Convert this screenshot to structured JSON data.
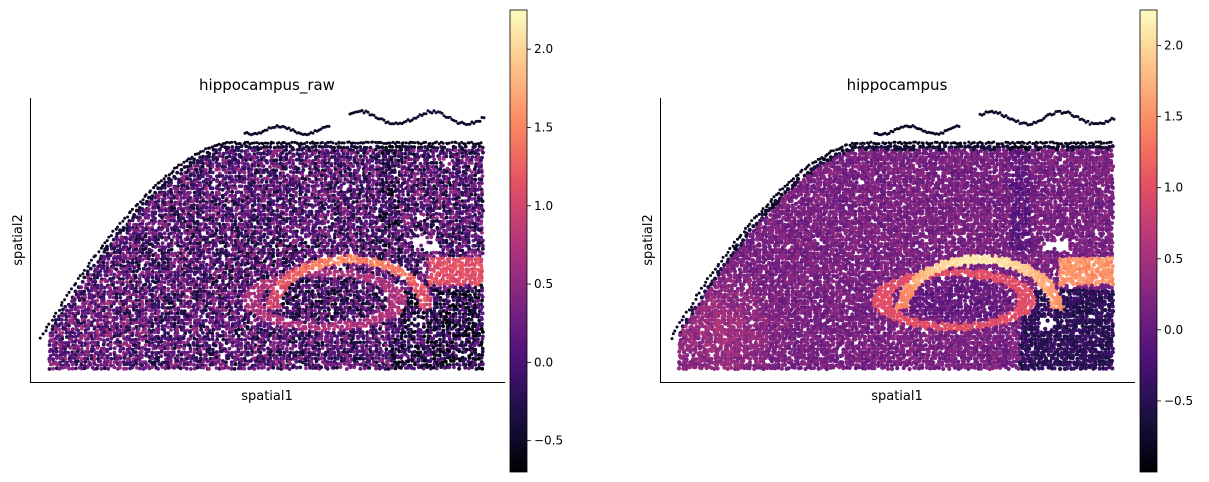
{
  "chart_data": [
    {
      "type": "scatter",
      "title": "hippocampus_raw",
      "xlabel": "spatial1",
      "ylabel": "spatial2",
      "colormap": "magma",
      "color_range": [
        -0.7,
        2.25
      ],
      "colorbar_ticks": [
        -0.5,
        0.0,
        0.5,
        1.0,
        1.5,
        2.0
      ],
      "colorbar_tick_labels": [
        "−0.5",
        "0.0",
        "0.5",
        "1.0",
        "1.5",
        "2.0"
      ],
      "x_ticks": [],
      "y_ticks": [],
      "smoothed": false,
      "dentate_max": 1.5,
      "ca_max": 1.3,
      "background_level": 0.05
    },
    {
      "type": "scatter",
      "title": "hippocampus",
      "xlabel": "spatial1",
      "ylabel": "spatial2",
      "colormap": "magma",
      "color_range": [
        -1.0,
        2.25
      ],
      "colorbar_ticks": [
        -0.5,
        0.0,
        0.5,
        1.0,
        1.5,
        2.0
      ],
      "colorbar_tick_labels": [
        "−0.5",
        "0.0",
        "0.5",
        "1.0",
        "1.5",
        "2.0"
      ],
      "x_ticks": [],
      "y_ticks": [],
      "smoothed": true,
      "dentate_max": 2.1,
      "ca_max": 1.8,
      "background_level": 0.15
    }
  ]
}
